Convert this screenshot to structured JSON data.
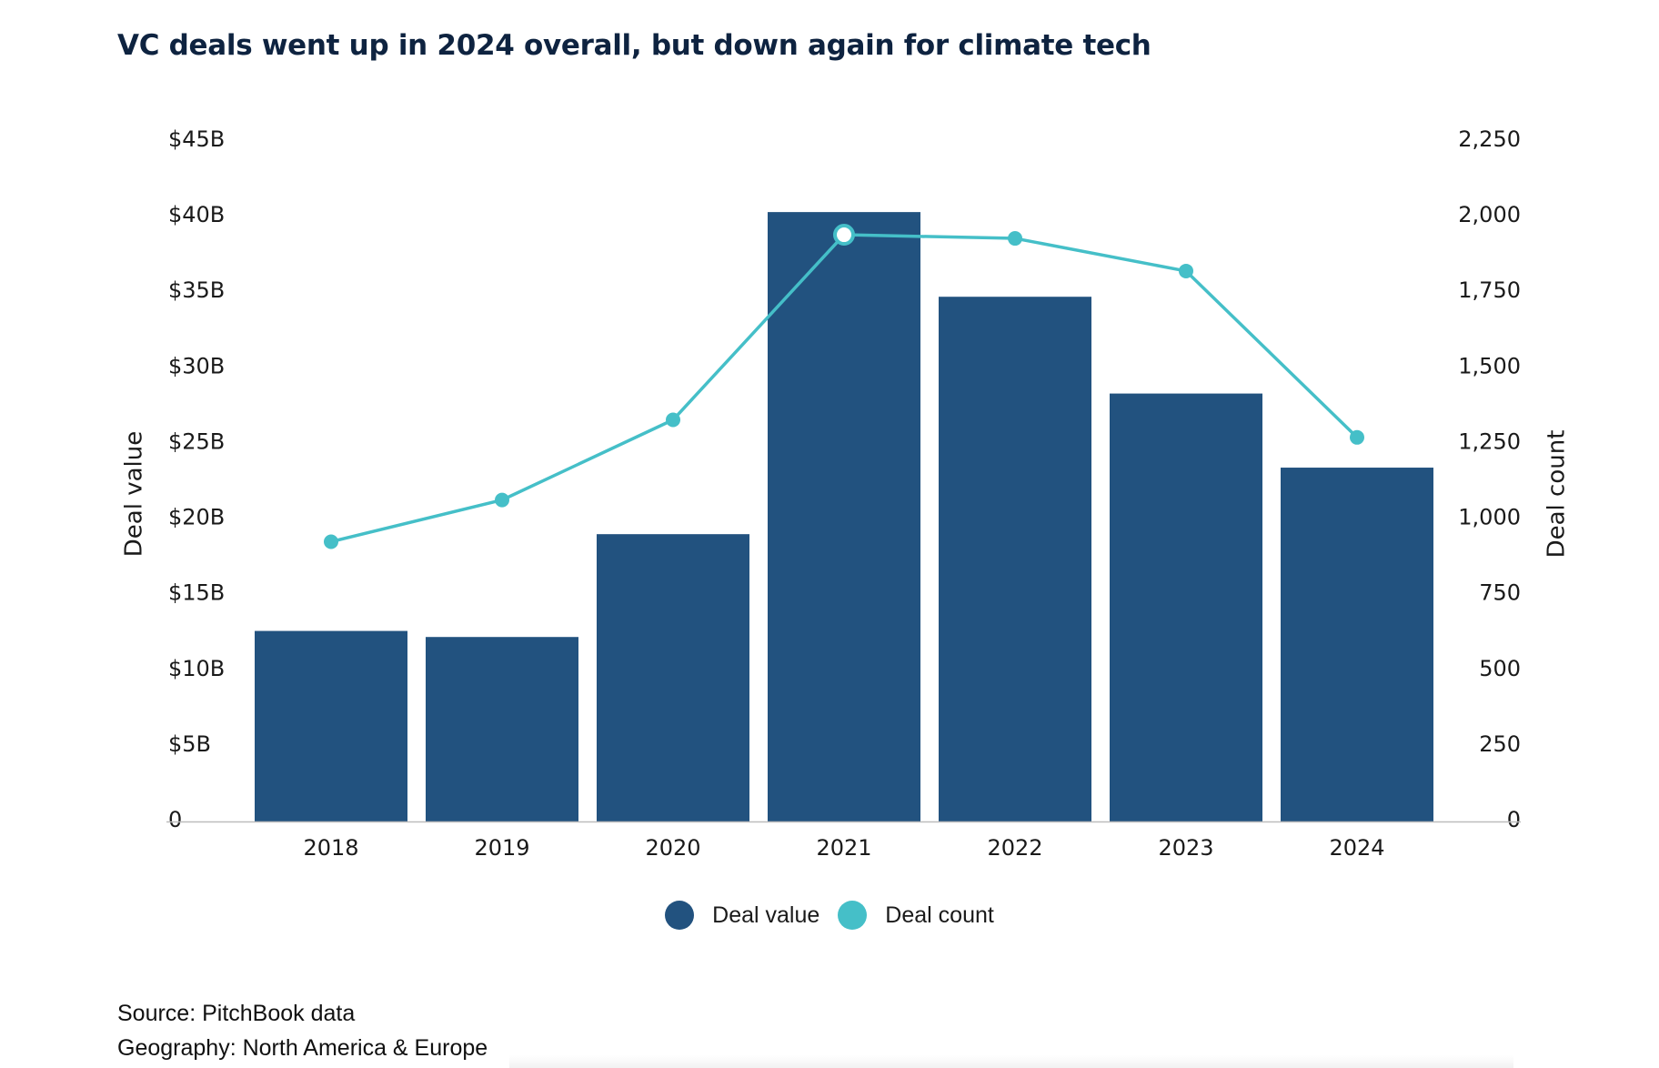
{
  "title": "VC deals went up in 2024 overall, but down again for climate tech",
  "chart_data": {
    "type": "bar",
    "categories": [
      "2018",
      "2019",
      "2020",
      "2021",
      "2022",
      "2023",
      "2024"
    ],
    "series": [
      {
        "name": "Deal value",
        "type": "bar",
        "axis": "left",
        "color": "#22527f",
        "values": [
          12.6,
          12.2,
          19.0,
          40.3,
          34.7,
          28.3,
          23.4
        ]
      },
      {
        "name": "Deal count",
        "type": "line",
        "axis": "right",
        "color": "#45bfc8",
        "values": [
          925,
          1063,
          1328,
          1940,
          1928,
          1820,
          1270
        ],
        "highlighted_index": 3
      }
    ],
    "y_left": {
      "label": "Deal value",
      "ylim": [
        0,
        45
      ],
      "ticks": [
        "0",
        "$5B",
        "$10B",
        "$15B",
        "$20B",
        "$25B",
        "$30B",
        "$35B",
        "$40B",
        "$45B"
      ]
    },
    "y_right": {
      "label": "Deal count",
      "ylim": [
        0,
        2250
      ],
      "ticks": [
        "0",
        "250",
        "500",
        "750",
        "1,000",
        "1,250",
        "1,500",
        "1,750",
        "2,000",
        "2,250"
      ]
    },
    "grid": false,
    "legend": "bottom-center"
  },
  "legend": [
    {
      "label": "Deal value",
      "color": "#22527f"
    },
    {
      "label": "Deal count",
      "color": "#45bfc8"
    }
  ],
  "footer": {
    "source": "Source: PitchBook data",
    "geography": "Geography: North America & Europe"
  }
}
